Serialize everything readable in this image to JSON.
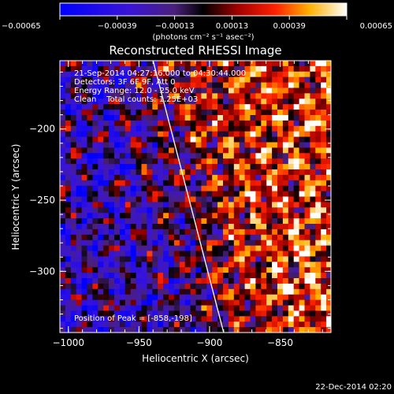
{
  "chart_data": {
    "type": "heatmap",
    "title": "Reconstructed RHESSI Image",
    "xlabel": "Heliocentric X (arcsec)",
    "ylabel": "Heliocentric Y (arcsec)",
    "xlim": [
      -1006,
      -814
    ],
    "ylim": [
      -343,
      -152
    ],
    "x_ticks": [
      -1000,
      -950,
      -900,
      -850
    ],
    "x_tick_labels": [
      "−1000",
      "−950",
      "−900",
      "−850"
    ],
    "y_ticks": [
      -200,
      -250,
      -300
    ],
    "y_tick_labels": [
      "−200",
      "−250",
      "−300"
    ],
    "colorbar": {
      "range": [
        -0.00065,
        0.00065
      ],
      "ticks": [
        -0.00065,
        -0.00039,
        -0.00013,
        0.00013,
        0.00039,
        0.00065
      ],
      "tick_labels": [
        "−0.00065",
        "−0.00039",
        "−0.00013",
        "0.00013",
        "0.00039",
        "0.00065"
      ],
      "unit_label": "(photons cm⁻² s⁻¹ asec⁻²)",
      "colormap": "blue-purple-black-red-orange-yellow-white"
    },
    "annotations": [
      "21-Sep-2014 04:27:16.000 to 04:30:44.000",
      "Detectors: 3F 6F 9F, Att 0",
      "Energy Range: 12.0 - 25.0 keV",
      "Clean    Total counts: 1.25E+03"
    ],
    "peak_label": "Position of Peak = [-858,-198]",
    "peak_position": [
      -858,
      -198
    ],
    "limb_line": [
      [
        -940,
        -152
      ],
      [
        -890,
        -343
      ]
    ],
    "grid": false
  },
  "footer": {
    "timestamp": "22-Dec-2014 02:20"
  }
}
